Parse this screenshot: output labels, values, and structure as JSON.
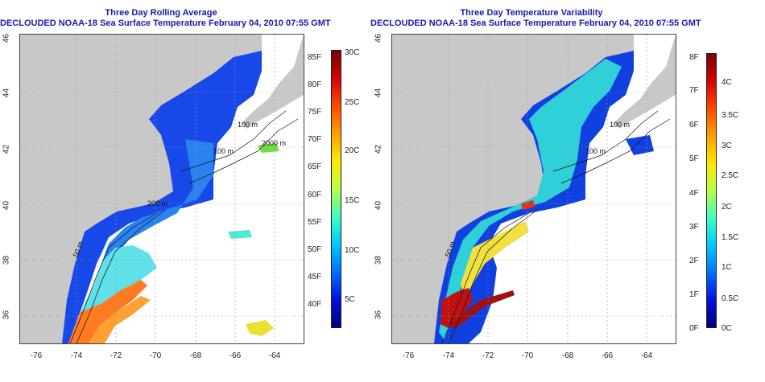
{
  "left_panel": {
    "title_line1": "Three Day Rolling Average",
    "title_line2": "DECLOUDED NOAA-18 Sea Surface Temperature February 04, 2010 07:55 GMT",
    "y_ticks": [
      "46",
      "44",
      "42",
      "40",
      "38",
      "36"
    ],
    "x_ticks": [
      "-76",
      "-74",
      "-72",
      "-70",
      "-68",
      "-66",
      "-64"
    ],
    "isobath_labels": [
      "100 m",
      "2000 m",
      "100 m",
      "200 m",
      "50 m"
    ],
    "colorbar": {
      "f_labels": [
        "85F",
        "80F",
        "75F",
        "70F",
        "65F",
        "60F",
        "55F",
        "50F",
        "45F",
        "40F"
      ],
      "c_labels": [
        "30C",
        "25C",
        "20C",
        "15C",
        "10C",
        "5C"
      ],
      "colors": [
        "#7a0000",
        "#d40000",
        "#ff4a00",
        "#ffa000",
        "#ffe800",
        "#b8ff48",
        "#40ffbf",
        "#00c8ff",
        "#0070ff",
        "#0010e0",
        "#00007a"
      ]
    }
  },
  "right_panel": {
    "title_line1": "Three Day Temperature Variability",
    "title_line2": "DECLOUDED NOAA-18 Sea Surface Temperature February 04, 2010 07:55 GMT",
    "y_ticks": [
      "46",
      "44",
      "42",
      "40",
      "38",
      "36"
    ],
    "x_ticks": [
      "-76",
      "-74",
      "-72",
      "-70",
      "-68",
      "-66",
      "-64"
    ],
    "isobath_labels": [
      "100 m",
      "100 m",
      "50 m"
    ],
    "colorbar": {
      "f_labels": [
        "8F",
        "7F",
        "6F",
        "5F",
        "4F",
        "3F",
        "2F",
        "1F",
        "0F"
      ],
      "c_labels": [
        "4C",
        "3.5C",
        "3C",
        "2.5C",
        "2C",
        "1.5C",
        "1C",
        "0.5C",
        "0C"
      ],
      "colors": [
        "#7a0000",
        "#d40000",
        "#ff4a00",
        "#ffa000",
        "#ffe800",
        "#b8ff48",
        "#40ffbf",
        "#00c8ff",
        "#0070ff",
        "#0010e0",
        "#00007a"
      ]
    }
  }
}
